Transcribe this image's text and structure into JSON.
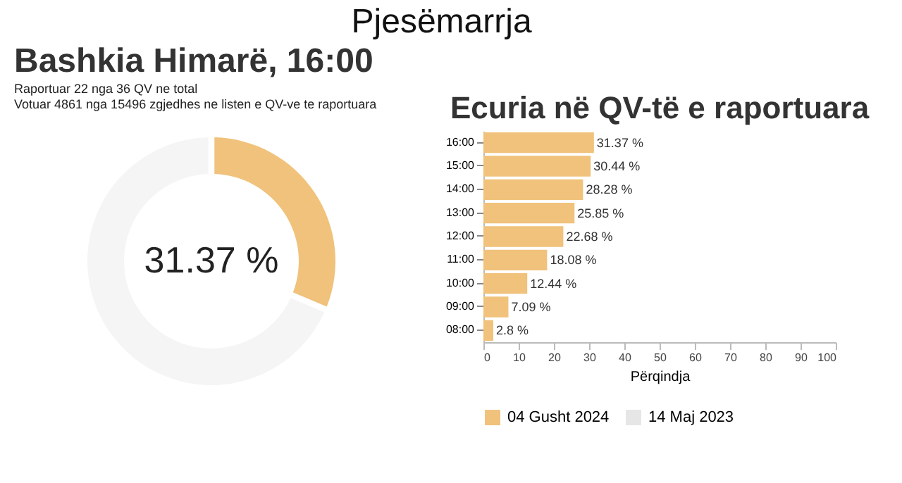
{
  "chart_data": [
    {
      "type": "donut",
      "title": "Bashkia Himarë, 16:00",
      "annotations": [
        "Pjesëmarrja",
        "Raportuar 22 nga 36 QV ne total",
        "Votuar 4861 nga 15496 zgjedhes ne listen e QV-ve te raportuara"
      ],
      "categories": [
        null,
        null
      ],
      "values": [
        31.37,
        68.63
      ],
      "colors": [
        "#f0c27b",
        "#f5f5f5"
      ],
      "value_labels": [
        "31.37 %",
        null
      ]
    },
    {
      "type": "bar",
      "orientation": "horizontal",
      "title": "Ecuria në QV-të e raportuara",
      "xlabel": "Përqindja",
      "categories": [
        "16:00",
        "15:00",
        "14:00",
        "13:00",
        "12:00",
        "11:00",
        "10:00",
        "09:00",
        "08:00"
      ],
      "series": [
        {
          "name": "04 Gusht 2024",
          "color": "#f0c27b",
          "values": [
            31.37,
            30.44,
            28.28,
            25.85,
            22.68,
            18.08,
            12.44,
            7.09,
            2.8
          ],
          "value_labels": [
            "31.37 %",
            "30.44 %",
            "28.28 %",
            "25.85 %",
            "22.68 %",
            "18.08 %",
            "12.44 %",
            "7.09 %",
            "2.8 %"
          ]
        },
        {
          "name": "14 Maj 2023",
          "color": "#e6e6e6",
          "values": [
            null,
            null,
            null,
            null,
            null,
            null,
            null,
            null,
            null
          ]
        }
      ],
      "xlim": [
        0,
        100
      ],
      "xticks": [
        0,
        10,
        20,
        30,
        40,
        50,
        60,
        70,
        80,
        90,
        100
      ],
      "grid": false,
      "legend": "bottom"
    }
  ]
}
